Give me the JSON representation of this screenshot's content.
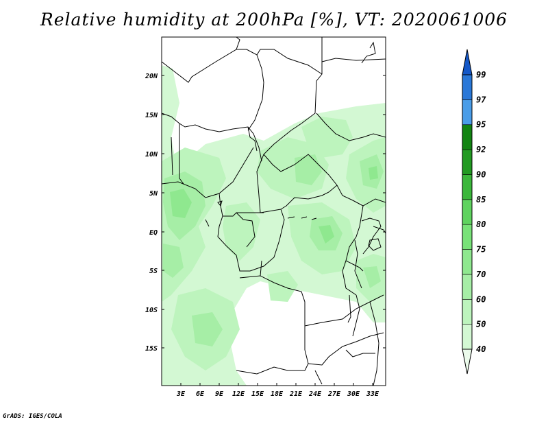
{
  "title": "Relative humidity at 200hPa [%], VT: 2020061006",
  "credit": "GrADS: IGES/COLA",
  "map": {
    "lat_labels": [
      "20N",
      "15N",
      "10N",
      "5N",
      "EQ",
      "5S",
      "10S",
      "15S"
    ],
    "lon_labels": [
      "3E",
      "6E",
      "9E",
      "12E",
      "15E",
      "18E",
      "21E",
      "24E",
      "27E",
      "30E",
      "33E"
    ]
  },
  "colorbar": {
    "levels": [
      "40",
      "50",
      "60",
      "70",
      "75",
      "80",
      "85",
      "90",
      "92",
      "95",
      "97",
      "99"
    ],
    "colors": [
      "#ebfbeb",
      "#d3f8d3",
      "#bdf4bd",
      "#a6eea6",
      "#8fe88f",
      "#78e278",
      "#5fd35f",
      "#3bb73b",
      "#229a22",
      "#128412",
      "#4a9de8",
      "#2a78d8",
      "#1458c8"
    ]
  }
}
